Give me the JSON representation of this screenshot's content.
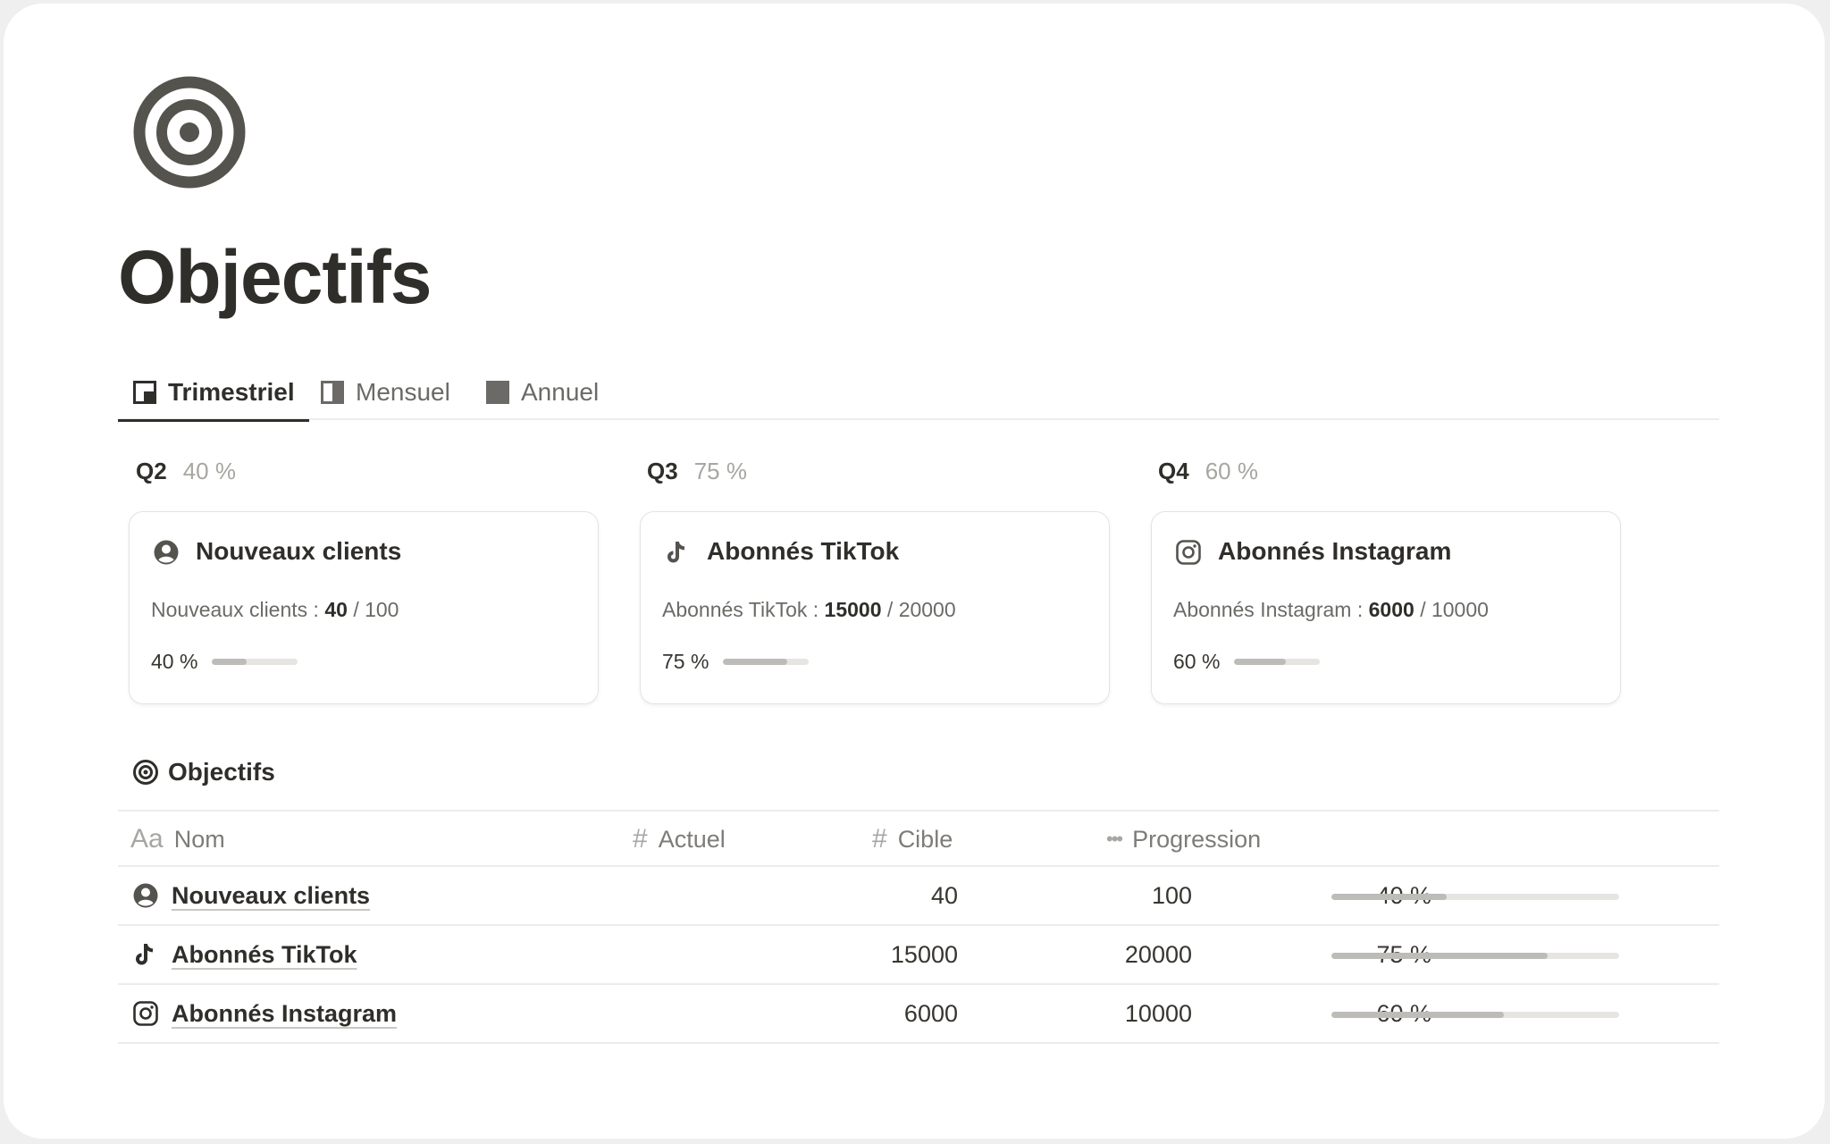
{
  "page": {
    "title": "Objectifs",
    "icon": "target-icon"
  },
  "tabs": [
    {
      "label": "Trimestriel",
      "icon": "board-view-icon",
      "active": true
    },
    {
      "label": "Mensuel",
      "icon": "half-square-icon",
      "active": false
    },
    {
      "label": "Annuel",
      "icon": "filled-square-icon",
      "active": false
    }
  ],
  "groups": [
    {
      "label": "Q2",
      "pct": "40 %",
      "card": {
        "icon": "user-circle-icon",
        "title": "Nouveaux clients",
        "line_label": "Nouveaux clients :",
        "current": "40",
        "sep": "/",
        "target": "100",
        "pct": "40 %",
        "progress": 0.4
      }
    },
    {
      "label": "Q3",
      "pct": "75 %",
      "card": {
        "icon": "tiktok-icon",
        "title": "Abonnés TikTok",
        "line_label": "Abonnés TikTok :",
        "current": "15000",
        "sep": "/",
        "target": "20000",
        "pct": "75 %",
        "progress": 0.75
      }
    },
    {
      "label": "Q4",
      "pct": "60 %",
      "card": {
        "icon": "instagram-icon",
        "title": "Abonnés Instagram",
        "line_label": "Abonnés Instagram :",
        "current": "6000",
        "sep": "/",
        "target": "10000",
        "pct": "60 %",
        "progress": 0.6
      }
    }
  ],
  "database": {
    "title": "Objectifs",
    "icon": "target-icon",
    "columns": [
      {
        "label": "Nom",
        "type_glyph": "Aa"
      },
      {
        "label": "Actuel",
        "type_glyph": "#"
      },
      {
        "label": "Cible",
        "type_glyph": "#"
      },
      {
        "label": "Progression",
        "type_glyph": "•••"
      }
    ],
    "rows": [
      {
        "icon": "user-circle-icon",
        "name": "Nouveaux clients",
        "actual": "40",
        "target": "100",
        "pct": "40 %",
        "progress": 0.4
      },
      {
        "icon": "tiktok-icon",
        "name": "Abonnés TikTok",
        "actual": "15000",
        "target": "20000",
        "pct": "75 %",
        "progress": 0.75
      },
      {
        "icon": "instagram-icon",
        "name": "Abonnés Instagram",
        "actual": "6000",
        "target": "10000",
        "pct": "60 %",
        "progress": 0.6
      }
    ]
  },
  "colors": {
    "text": "#37352f",
    "muted": "#a7a6a2",
    "bar_fill": "#bdbcb8",
    "bar_track": "#e6e5e2"
  }
}
